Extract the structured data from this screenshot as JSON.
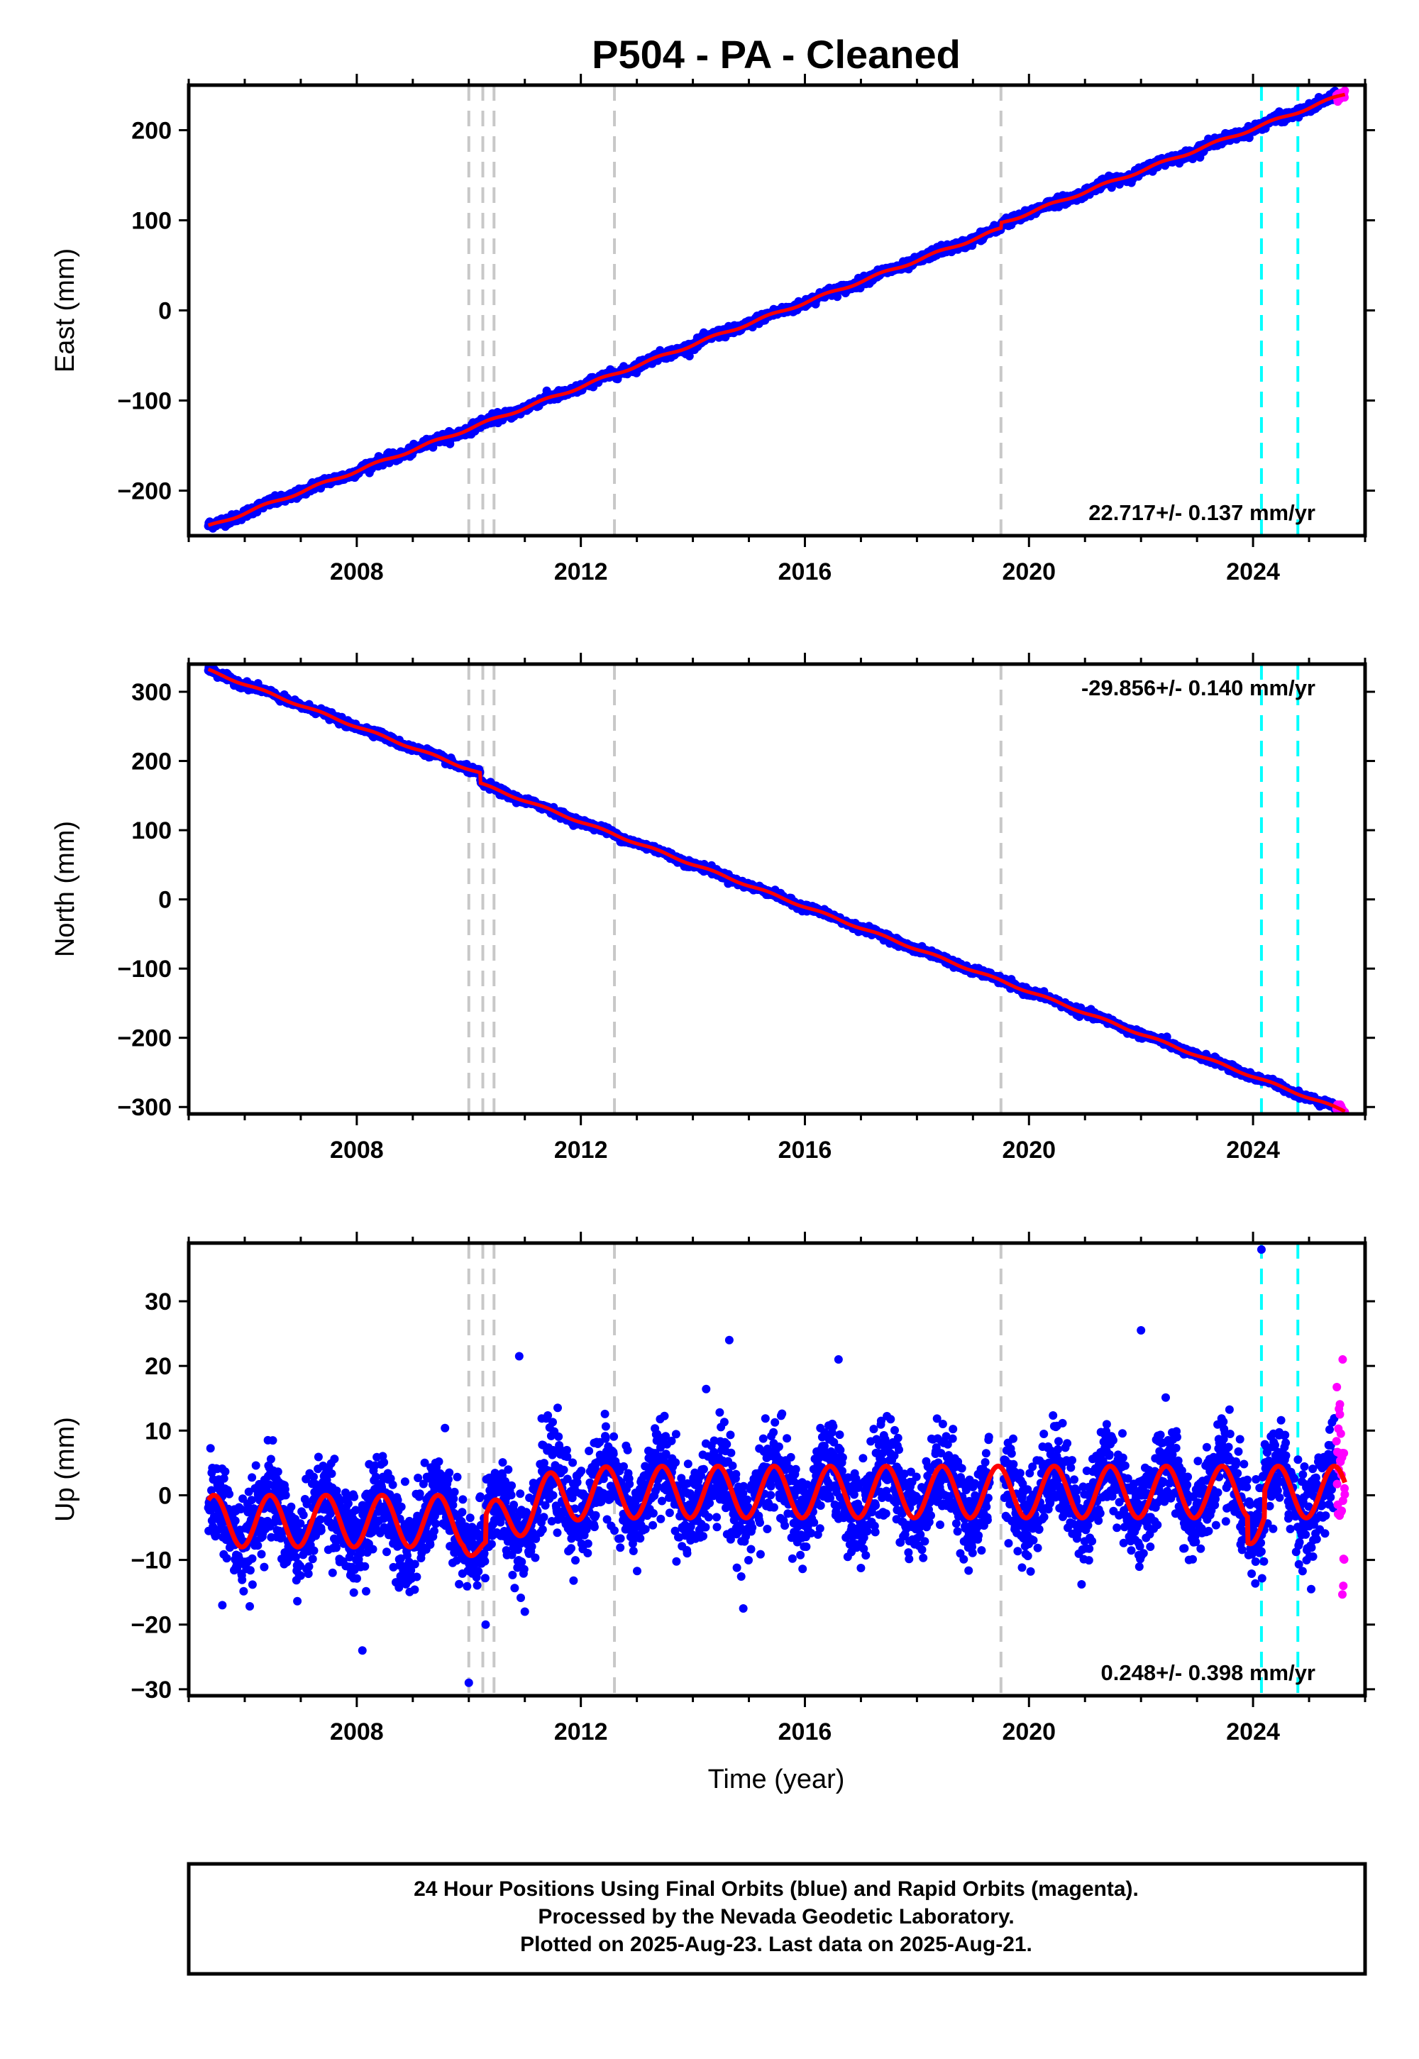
{
  "title": "P504  - PA - Cleaned",
  "footer": {
    "lines": [
      "24 Hour Positions Using Final Orbits (blue) and Rapid Orbits (magenta).",
      "Processed by the Nevada Geodetic Laboratory.",
      "Plotted on 2025-Aug-23. Last data on 2025-Aug-21."
    ]
  },
  "colors": {
    "final_orbits": "#0000ff",
    "rapid_orbits": "#ff00ff",
    "model": "#ff0000",
    "equipment_change": "#c8c8c8",
    "earthquake_event": "#00ffff",
    "frame": "#000000"
  },
  "chart_data": [
    {
      "type": "scatter",
      "ylabel": "East (mm)",
      "xlabel": "",
      "xlim": [
        2005.0,
        2026.0
      ],
      "ylim": [
        -250,
        250
      ],
      "x_ticks": [
        2008,
        2012,
        2016,
        2020,
        2024
      ],
      "x_tick_labels": [
        "2008",
        "2012",
        "2016",
        "2020",
        "2024"
      ],
      "y_ticks": [
        -200,
        -100,
        0,
        100,
        200
      ],
      "y_tick_labels": [
        "−200",
        "−100",
        "0",
        "100",
        "200"
      ],
      "rate_label": "22.717+/- 0.137 mm/yr",
      "rate_label_position": "bottom-right",
      "start_year": 2005.35,
      "end_year": 2025.64,
      "rate_mm_per_yr": 22.717,
      "value_at_start": -240,
      "value_at_end": 240,
      "seasonal_amplitude_mm": 1.5,
      "scatter_mm": 2.5,
      "offsets": [
        {
          "year": 2019.5,
          "mm": 6
        }
      ],
      "series": [
        {
          "name": "24 Hour Positions Using Final Orbits (blue)",
          "color": "#0000ff"
        },
        {
          "name": "Rapid Orbits (magenta)",
          "color": "#ff00ff"
        }
      ],
      "equipment_changes": [
        2010.0,
        2010.25,
        2010.45,
        2012.6,
        2019.5
      ],
      "earthquakes": [
        2024.15,
        2024.8
      ]
    },
    {
      "type": "scatter",
      "ylabel": "North (mm)",
      "xlabel": "",
      "xlim": [
        2005.0,
        2026.0
      ],
      "ylim": [
        -310,
        340
      ],
      "x_ticks": [
        2008,
        2012,
        2016,
        2020,
        2024
      ],
      "x_tick_labels": [
        "2008",
        "2012",
        "2016",
        "2020",
        "2024"
      ],
      "y_ticks": [
        -300,
        -200,
        -100,
        0,
        100,
        200,
        300
      ],
      "y_tick_labels": [
        "−300",
        "−200",
        "−100",
        "0",
        "100",
        "200",
        "300"
      ],
      "rate_label": "-29.856+/- 0.140 mm/yr",
      "rate_label_position": "top-right",
      "start_year": 2005.35,
      "end_year": 2025.64,
      "rate_mm_per_yr": -29.856,
      "value_at_start": 331,
      "value_at_end": -306,
      "seasonal_amplitude_mm": 1.5,
      "scatter_mm": 2.5,
      "offsets": [
        {
          "year": 2010.2,
          "mm": -15
        }
      ],
      "series": [
        {
          "name": "24 Hour Positions Using Final Orbits (blue)",
          "color": "#0000ff"
        },
        {
          "name": "Rapid Orbits (magenta)",
          "color": "#ff00ff"
        }
      ],
      "equipment_changes": [
        2010.0,
        2010.25,
        2010.45,
        2012.6,
        2019.5
      ],
      "earthquakes": [
        2024.15,
        2024.8
      ]
    },
    {
      "type": "scatter",
      "ylabel": "Up (mm)",
      "xlabel": "Time (year)",
      "xlim": [
        2005.0,
        2026.0
      ],
      "ylim": [
        -31,
        39
      ],
      "x_ticks": [
        2008,
        2012,
        2016,
        2020,
        2024
      ],
      "x_tick_labels": [
        "2008",
        "2012",
        "2016",
        "2020",
        "2024"
      ],
      "y_ticks": [
        -30,
        -20,
        -10,
        0,
        10,
        20,
        30
      ],
      "y_tick_labels": [
        "−30",
        "−20",
        "−10",
        "0",
        "10",
        "20",
        "30"
      ],
      "rate_label": "0.248+/- 0.398 mm/yr",
      "rate_label_position": "bottom-right",
      "start_year": 2005.35,
      "end_year": 2025.64,
      "rate_mm_per_yr": 0.248,
      "value_at_start": -4,
      "value_at_end": 0,
      "seasonal_amplitude_mm": 4,
      "scatter_mm": 3.5,
      "offsets": [
        {
          "year": 2010.35,
          "mm": 6
        }
      ],
      "series": [
        {
          "name": "24 Hour Positions Using Final Orbits (blue)",
          "color": "#0000ff"
        },
        {
          "name": "Rapid Orbits (magenta)",
          "color": "#ff00ff"
        }
      ],
      "outliers": [
        {
          "x": 2024.15,
          "y": 38
        },
        {
          "x": 2022.0,
          "y": 25.5
        },
        {
          "x": 2014.65,
          "y": 24
        },
        {
          "x": 2010.9,
          "y": 21.5
        },
        {
          "x": 2016.6,
          "y": 21
        },
        {
          "x": 2010.0,
          "y": -29
        },
        {
          "x": 2008.1,
          "y": -24
        },
        {
          "x": 2014.9,
          "y": -17.5
        },
        {
          "x": 2005.6,
          "y": -17
        },
        {
          "x": 2010.3,
          "y": -20
        },
        {
          "x": 2011.0,
          "y": -18
        },
        {
          "x": 2025.6,
          "y": 21
        },
        {
          "x": 2025.55,
          "y": 12.5
        }
      ],
      "equipment_changes": [
        2010.0,
        2010.25,
        2010.45,
        2012.6,
        2019.5
      ],
      "earthquakes": [
        2024.15,
        2024.8
      ]
    }
  ]
}
